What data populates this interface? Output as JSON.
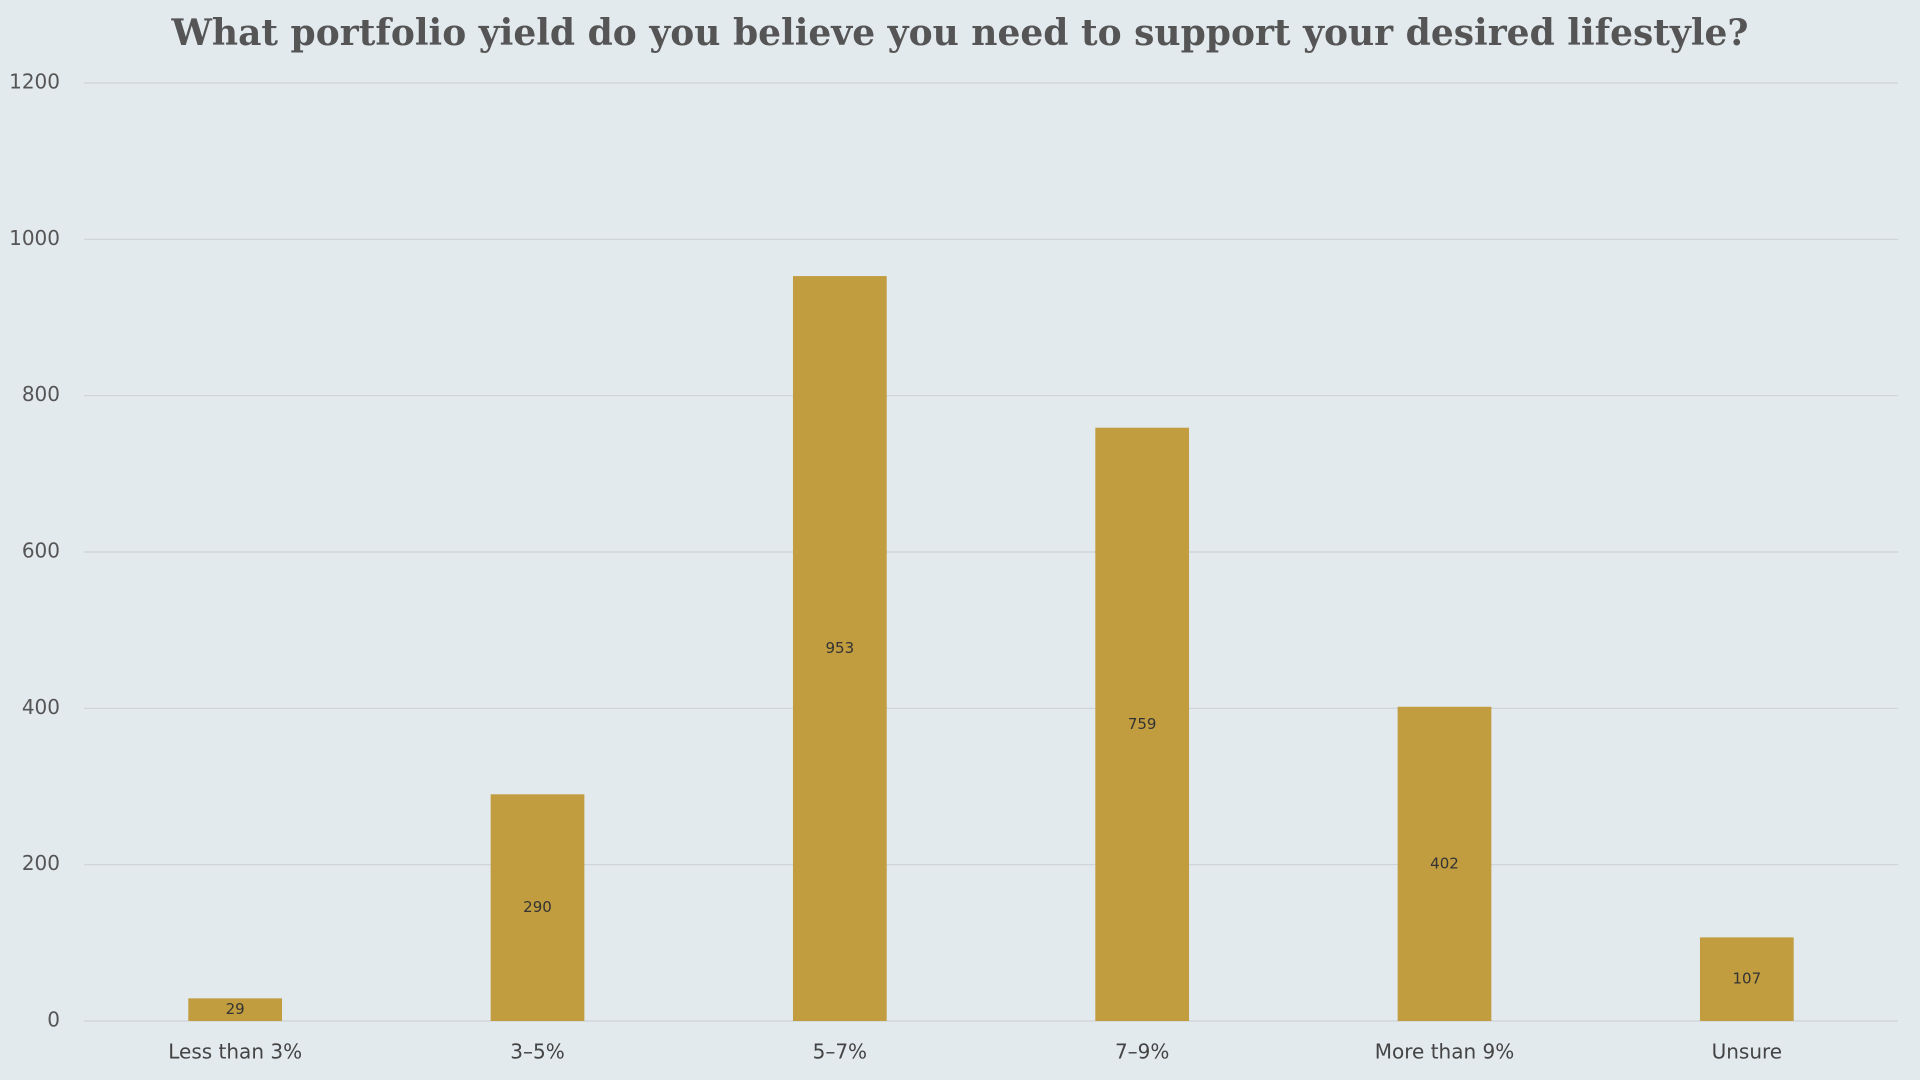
{
  "chart_data": {
    "type": "bar",
    "title": "What portfolio yield do you believe you need to support your desired lifestyle?",
    "categories": [
      "Less than 3%",
      "3–5%",
      "5–7%",
      "7–9%",
      "More than 9%",
      "Unsure"
    ],
    "values": [
      29,
      290,
      953,
      759,
      402,
      107
    ],
    "color": "#c19d40",
    "ylim": [
      0,
      1200
    ],
    "yticks": [
      0,
      200,
      400,
      600,
      800,
      1000,
      1200
    ],
    "grid": true
  }
}
